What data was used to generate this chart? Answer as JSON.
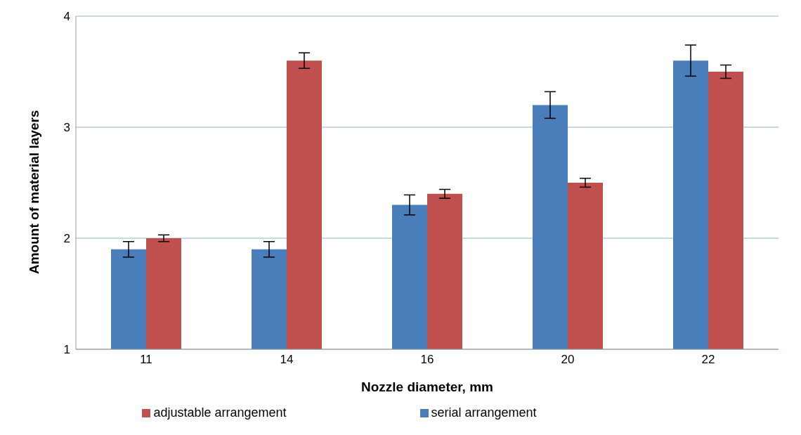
{
  "chart_data": {
    "type": "bar",
    "xlabel": "Nozzle diameter, mm",
    "ylabel": "Amount of material layers",
    "categories": [
      "11",
      "14",
      "16",
      "20",
      "22"
    ],
    "series": [
      {
        "name": "serial arrangement",
        "color": "#4a7ebb",
        "values": [
          1.9,
          1.9,
          2.3,
          3.2,
          3.6
        ],
        "errors": [
          0.07,
          0.07,
          0.09,
          0.12,
          0.14
        ]
      },
      {
        "name": "adjustable arrangement",
        "color": "#c0504d",
        "values": [
          2.0,
          3.6,
          2.4,
          2.5,
          3.5
        ],
        "errors": [
          0.03,
          0.07,
          0.04,
          0.04,
          0.06
        ]
      }
    ],
    "ylim": [
      1,
      4
    ],
    "yticks": [
      1,
      2,
      3,
      4
    ],
    "grid": "y",
    "legend": "bottom"
  }
}
